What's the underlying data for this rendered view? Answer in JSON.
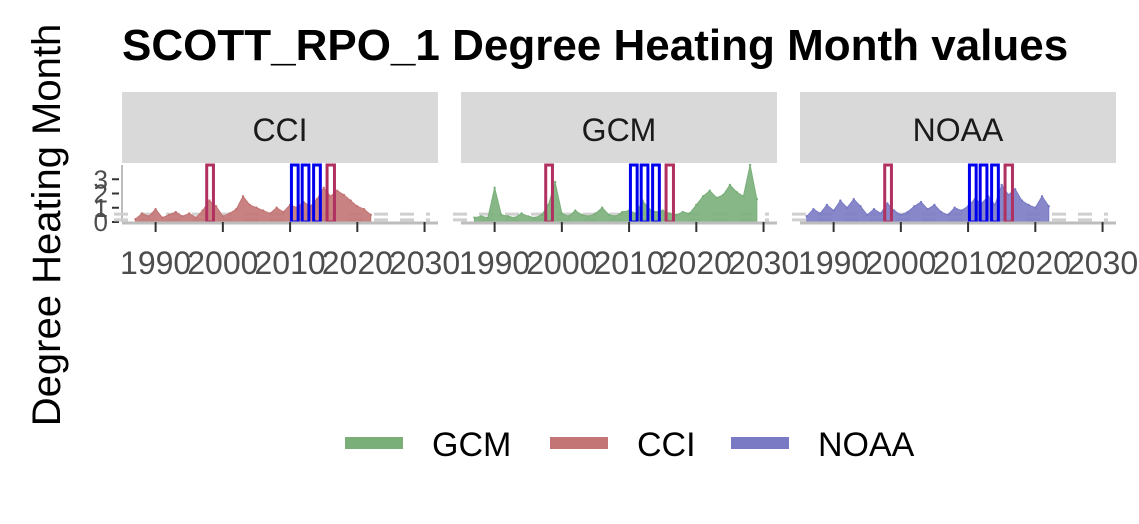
{
  "chart_data": {
    "type": "area",
    "title": "SCOTT_RPO_1 Degree Heating Month values",
    "ylabel": "Degree Heating Month",
    "xlabel": "",
    "x_ticks": [
      "1990",
      "2000",
      "2010",
      "2020",
      "2030"
    ],
    "y_ticks": [
      "0",
      "1",
      "2",
      "3"
    ],
    "xlim": [
      1985,
      2032
    ],
    "ylim": [
      0,
      4
    ],
    "legend_position": "bottom",
    "legend": [
      {
        "name": "GCM",
        "color": "#7aaf7a"
      },
      {
        "name": "CCI",
        "color": "#c37474"
      },
      {
        "name": "NOAA",
        "color": "#7a7ac4"
      }
    ],
    "highlight_years": [
      {
        "start": 1997.6,
        "end": 1998.6,
        "color": "#b03060"
      },
      {
        "start": 2010.2,
        "end": 2011.2,
        "color": "#0000ee"
      },
      {
        "start": 2011.8,
        "end": 2012.8,
        "color": "#0000ee"
      },
      {
        "start": 2013.5,
        "end": 2014.5,
        "color": "#0000ee"
      },
      {
        "start": 2015.5,
        "end": 2016.6,
        "color": "#b03060"
      }
    ],
    "panels": [
      {
        "name": "CCI",
        "color": "#c37474",
        "x": [
          1987,
          1988,
          1989,
          1990,
          1991,
          1992,
          1993,
          1994,
          1995,
          1996,
          1997,
          1998,
          1999,
          2000,
          2001,
          2002,
          2003,
          2004,
          2005,
          2006,
          2007,
          2008,
          2009,
          2010,
          2011,
          2012,
          2013,
          2014,
          2015,
          2016,
          2017,
          2018,
          2019,
          2020,
          2021,
          2022
        ],
        "y": [
          0.2,
          0.6,
          0.4,
          0.9,
          0.3,
          0.5,
          0.7,
          0.4,
          0.6,
          0.3,
          0.8,
          1.5,
          1.1,
          0.4,
          0.6,
          0.9,
          1.8,
          1.2,
          1.0,
          0.8,
          0.6,
          1.0,
          0.7,
          1.2,
          1.0,
          1.4,
          1.1,
          1.6,
          2.4,
          1.8,
          2.2,
          1.9,
          1.5,
          1.1,
          0.9,
          0.5
        ]
      },
      {
        "name": "GCM",
        "color": "#7aaf7a",
        "x": [
          1987,
          1988,
          1989,
          1990,
          1991,
          1992,
          1993,
          1994,
          1995,
          1996,
          1997,
          1998,
          1999,
          2000,
          2001,
          2002,
          2003,
          2004,
          2005,
          2006,
          2007,
          2008,
          2009,
          2010,
          2011,
          2012,
          2013,
          2014,
          2015,
          2016,
          2017,
          2018,
          2019,
          2020,
          2021,
          2022,
          2023,
          2024,
          2025,
          2026,
          2027,
          2028,
          2029
        ],
        "y": [
          0.3,
          0.4,
          0.3,
          2.4,
          0.5,
          0.4,
          0.3,
          0.6,
          0.4,
          0.3,
          0.5,
          1.2,
          2.8,
          0.6,
          0.4,
          0.8,
          0.5,
          0.4,
          0.6,
          1.0,
          0.5,
          0.4,
          0.7,
          0.8,
          0.6,
          1.5,
          0.9,
          0.7,
          0.8,
          0.6,
          0.5,
          0.7,
          0.6,
          1.2,
          1.8,
          2.2,
          1.7,
          1.9,
          2.6,
          2.1,
          1.8,
          4.0,
          1.6
        ]
      },
      {
        "name": "NOAA",
        "color": "#7a7ac4",
        "x": [
          1986,
          1987,
          1988,
          1989,
          1990,
          1991,
          1992,
          1993,
          1994,
          1995,
          1996,
          1997,
          1998,
          1999,
          2000,
          2001,
          2002,
          2003,
          2004,
          2005,
          2006,
          2007,
          2008,
          2009,
          2010,
          2011,
          2012,
          2013,
          2014,
          2015,
          2016,
          2017,
          2018,
          2019,
          2020,
          2021,
          2022
        ],
        "y": [
          0.4,
          0.9,
          0.6,
          1.2,
          0.8,
          1.5,
          1.0,
          1.6,
          1.1,
          0.5,
          0.9,
          0.6,
          1.3,
          0.8,
          0.5,
          0.7,
          1.1,
          1.4,
          0.9,
          1.2,
          0.7,
          0.5,
          1.0,
          0.8,
          1.1,
          1.6,
          1.3,
          1.8,
          1.2,
          2.6,
          1.9,
          2.3,
          1.5,
          1.2,
          1.0,
          1.8,
          1.1
        ]
      }
    ]
  }
}
